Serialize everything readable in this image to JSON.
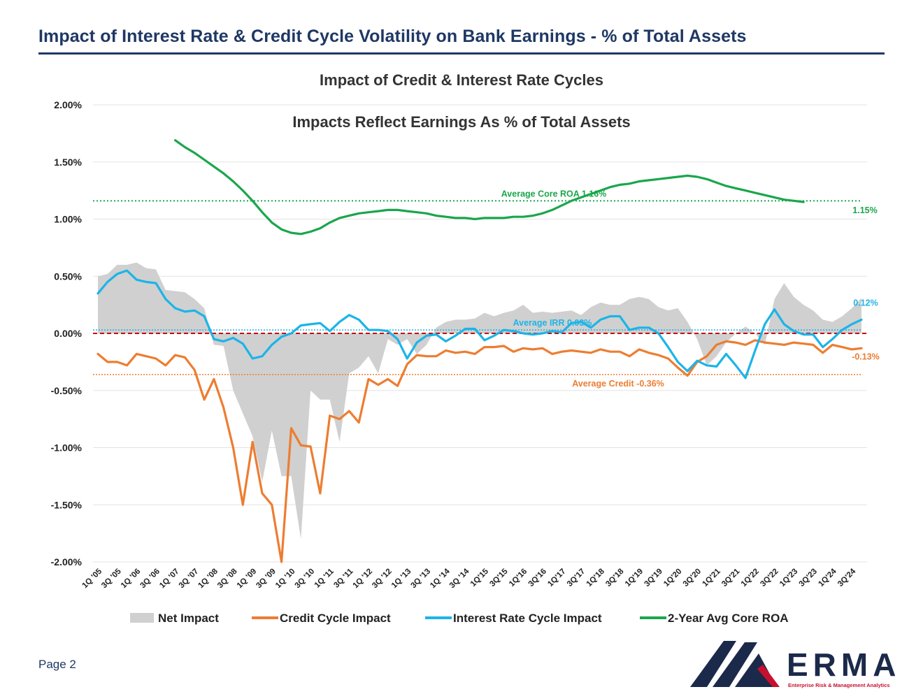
{
  "slide": {
    "title": "Impact of Interest Rate & Credit Cycle Volatility on Bank Earnings - % of Total Assets",
    "page_label": "Page 2"
  },
  "logo": {
    "name": "ERMA",
    "tagline": "Enterprise Risk & Management Analytics"
  },
  "colors": {
    "net": "#d0d0d0",
    "credit": "#ed7d31",
    "irr": "#1cb4e8",
    "roa": "#1aa64c",
    "zero_line": "#cc0000",
    "title": "#1f3864",
    "logo_navy": "#1b2a4a",
    "logo_red": "#c8102e"
  },
  "chart_data": {
    "type": "line",
    "title": "Impact of Credit & Interest Rate Cycles",
    "subtitle": "Impacts Reflect Earnings As % of Total Assets",
    "ylim": [
      -2.0,
      2.0
    ],
    "yticks": [
      -2.0,
      -1.5,
      -1.0,
      -0.5,
      0.0,
      0.5,
      1.0,
      1.5,
      2.0
    ],
    "ytick_labels": [
      "-2.00%",
      "-1.50%",
      "-1.00%",
      "-0.50%",
      "0.00%",
      "0.50%",
      "1.00%",
      "1.50%",
      "2.00%"
    ],
    "grid": true,
    "legend_position": "bottom",
    "x_start_year": 2005,
    "n_quarters": 80,
    "xtick_labels": [
      "1Q '05",
      "3Q '05",
      "1Q '06",
      "3Q '06",
      "1Q '07",
      "3Q '07",
      "1Q '08",
      "3Q '08",
      "1Q '09",
      "3Q '09",
      "1Q '10",
      "3Q '10",
      "1Q '11",
      "3Q '11",
      "1Q '12",
      "3Q '12",
      "1Q '13",
      "3Q '13",
      "1Q '14",
      "3Q '14",
      "1Q'15",
      "3Q'15",
      "1Q'16",
      "3Q'16",
      "1Q'17",
      "3Q'17",
      "1Q'18",
      "3Q'18",
      "1Q'19",
      "3Q'19",
      "1Q'20",
      "3Q'20",
      "1Q'21",
      "3Q'21",
      "1Q'22",
      "3Q'22",
      "1Q'23",
      "3Q'23",
      "1Q'24",
      "3Q'24"
    ],
    "series": [
      {
        "name": "Net Impact",
        "kind": "area",
        "values": [
          0.5,
          0.52,
          0.6,
          0.6,
          0.62,
          0.57,
          0.56,
          0.38,
          0.37,
          0.36,
          0.3,
          0.22,
          -0.1,
          -0.11,
          -0.5,
          -0.7,
          -0.9,
          -1.3,
          -0.85,
          -1.25,
          -1.25,
          -1.8,
          -0.5,
          -0.58,
          -0.58,
          -0.95,
          -0.35,
          -0.3,
          -0.2,
          -0.35,
          -0.05,
          -0.1,
          -0.05,
          -0.18,
          -0.1,
          0.05,
          0.1,
          0.12,
          0.12,
          0.13,
          0.18,
          0.15,
          0.18,
          0.2,
          0.25,
          0.18,
          0.19,
          0.18,
          0.19,
          0.2,
          0.16,
          0.23,
          0.27,
          0.25,
          0.25,
          0.3,
          0.32,
          0.3,
          0.23,
          0.2,
          0.22,
          0.1,
          -0.05,
          -0.28,
          -0.2,
          -0.08,
          0.0,
          0.06,
          0.0,
          -0.1,
          0.3,
          0.44,
          0.32,
          0.25,
          0.2,
          0.12,
          0.1,
          0.15,
          0.22,
          0.31
        ]
      },
      {
        "name": "Credit Cycle Impact",
        "kind": "line",
        "values": [
          -0.18,
          -0.25,
          -0.25,
          -0.28,
          -0.18,
          -0.2,
          -0.22,
          -0.28,
          -0.19,
          -0.21,
          -0.32,
          -0.58,
          -0.4,
          -0.65,
          -1.0,
          -1.5,
          -0.95,
          -1.4,
          -1.5,
          -2.0,
          -0.83,
          -0.98,
          -0.99,
          -1.4,
          -0.72,
          -0.75,
          -0.68,
          -0.78,
          -0.4,
          -0.45,
          -0.4,
          -0.46,
          -0.27,
          -0.19,
          -0.2,
          -0.2,
          -0.15,
          -0.17,
          -0.16,
          -0.18,
          -0.12,
          -0.12,
          -0.11,
          -0.16,
          -0.13,
          -0.14,
          -0.13,
          -0.18,
          -0.16,
          -0.15,
          -0.16,
          -0.17,
          -0.14,
          -0.16,
          -0.16,
          -0.2,
          -0.14,
          -0.17,
          -0.19,
          -0.22,
          -0.3,
          -0.37,
          -0.25,
          -0.2,
          -0.1,
          -0.07,
          -0.08,
          -0.1,
          -0.06,
          -0.08,
          -0.09,
          -0.1,
          -0.08,
          -0.09,
          -0.1,
          -0.17,
          -0.1,
          -0.12,
          -0.14,
          -0.13
        ]
      },
      {
        "name": "Interest Rate Cycle Impact",
        "kind": "line",
        "values": [
          0.35,
          0.45,
          0.52,
          0.55,
          0.47,
          0.45,
          0.44,
          0.3,
          0.22,
          0.19,
          0.2,
          0.15,
          -0.05,
          -0.07,
          -0.04,
          -0.09,
          -0.22,
          -0.2,
          -0.1,
          -0.03,
          0.0,
          0.07,
          0.08,
          0.09,
          0.02,
          0.1,
          0.16,
          0.12,
          0.03,
          0.03,
          0.02,
          -0.05,
          -0.22,
          -0.08,
          -0.02,
          -0.01,
          -0.07,
          -0.02,
          0.04,
          0.04,
          -0.06,
          -0.02,
          0.03,
          0.02,
          0.0,
          -0.01,
          0.0,
          0.02,
          0.01,
          0.09,
          0.1,
          0.05,
          0.12,
          0.15,
          0.15,
          0.03,
          0.05,
          0.05,
          0.0,
          -0.12,
          -0.25,
          -0.33,
          -0.24,
          -0.28,
          -0.29,
          -0.18,
          -0.28,
          -0.39,
          -0.15,
          0.08,
          0.21,
          0.08,
          0.02,
          -0.01,
          -0.01,
          -0.12,
          -0.05,
          0.03,
          0.08,
          0.12
        ]
      },
      {
        "name": "2-Year Avg Core ROA",
        "kind": "line",
        "start_index": 8,
        "values": [
          1.69,
          1.63,
          1.58,
          1.52,
          1.46,
          1.4,
          1.33,
          1.25,
          1.16,
          1.06,
          0.97,
          0.91,
          0.88,
          0.87,
          0.89,
          0.92,
          0.97,
          1.01,
          1.03,
          1.05,
          1.06,
          1.07,
          1.08,
          1.08,
          1.07,
          1.06,
          1.05,
          1.03,
          1.02,
          1.01,
          1.01,
          1.0,
          1.01,
          1.01,
          1.01,
          1.02,
          1.02,
          1.03,
          1.05,
          1.08,
          1.12,
          1.16,
          1.19,
          1.22,
          1.25,
          1.28,
          1.3,
          1.31,
          1.33,
          1.34,
          1.35,
          1.36,
          1.37,
          1.38,
          1.37,
          1.35,
          1.32,
          1.29,
          1.27,
          1.25,
          1.23,
          1.21,
          1.19,
          1.17,
          1.16,
          1.15
        ]
      }
    ],
    "reference_lines": [
      {
        "label": "Average Core ROA 1.16%",
        "value": 1.16,
        "color_key": "roa"
      },
      {
        "label": "Average IRR 0.03%",
        "value": 0.03,
        "color_key": "irr"
      },
      {
        "label": "Average Credit -0.36%",
        "value": -0.36,
        "color_key": "credit"
      }
    ],
    "end_labels": [
      {
        "label": "1.15%",
        "value": 1.15,
        "color_key": "roa"
      },
      {
        "label": "0.12%",
        "value": 0.12,
        "color_key": "irr"
      },
      {
        "label": "-0.13%",
        "value": -0.13,
        "color_key": "credit"
      }
    ],
    "legend": [
      "Net Impact",
      "Credit Cycle Impact",
      "Interest Rate Cycle Impact",
      "2-Year Avg Core ROA"
    ]
  }
}
